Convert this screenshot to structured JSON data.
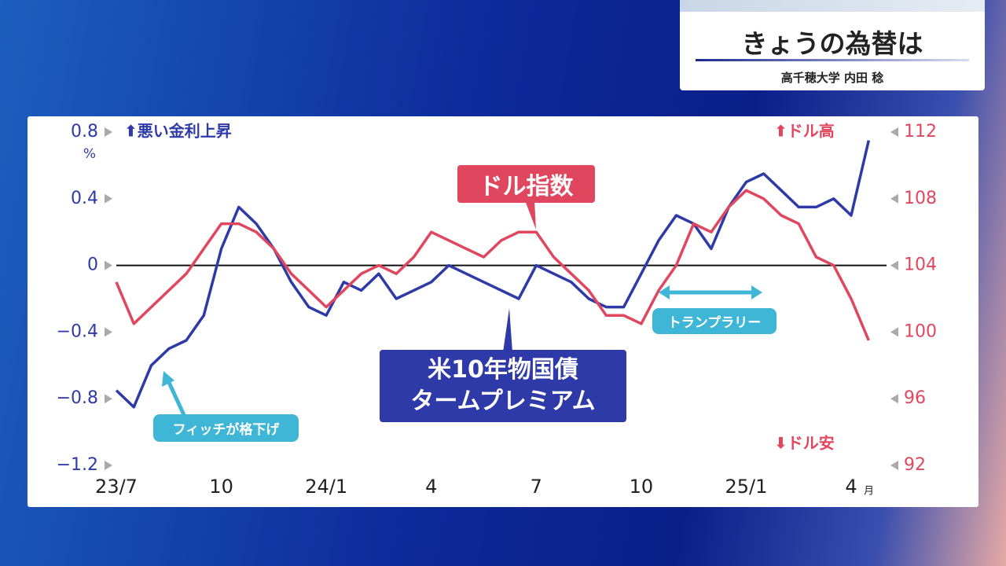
{
  "header": {
    "title": "きょうの為替は",
    "speaker": "高千穂大学 内田 稔"
  },
  "chart_data": {
    "type": "line",
    "categories": [
      "23/7",
      null,
      null,
      null,
      null,
      null,
      "10",
      null,
      null,
      null,
      null,
      null,
      "24/1",
      null,
      null,
      null,
      null,
      null,
      "4",
      null,
      null,
      null,
      null,
      null,
      "7",
      null,
      null,
      null,
      null,
      null,
      "10",
      null,
      null,
      null,
      null,
      null,
      "25/1",
      null,
      null,
      null,
      null,
      null,
      "4",
      null
    ],
    "xunit": "月",
    "yunit": "%",
    "ylim": [
      -1.2,
      0.8
    ],
    "yticks": [
      {
        "value": -1.2,
        "label": "−1.2"
      },
      {
        "value": -0.8,
        "label": "−0.8"
      },
      {
        "value": -0.4,
        "label": "−0.4"
      },
      0,
      0.4,
      0.8
    ],
    "y2lim": [
      92,
      112
    ],
    "y2ticks": [
      92,
      96,
      100,
      104,
      108,
      112
    ],
    "series": [
      {
        "name": "米10年物国債\nタームプレミアム",
        "color": "#2e3aa8",
        "values": [
          -0.75,
          -0.85,
          -0.6,
          -0.5,
          -0.45,
          -0.3,
          0.1,
          0.35,
          0.25,
          0.1,
          -0.1,
          -0.25,
          -0.3,
          -0.1,
          -0.15,
          -0.05,
          -0.2,
          -0.15,
          -0.1,
          0.0,
          -0.05,
          -0.1,
          -0.15,
          -0.2,
          0.0,
          -0.05,
          -0.1,
          -0.2,
          -0.25,
          -0.25,
          -0.05,
          0.15,
          0.3,
          0.25,
          0.1,
          0.35,
          0.5,
          0.55,
          0.45,
          0.35,
          0.35,
          0.4,
          0.3,
          0.75
        ]
      },
      {
        "name": "ドル指数",
        "color": "#e0475f",
        "axis": "y2",
        "values": [
          103,
          100.5,
          101.5,
          102.5,
          103.5,
          105,
          106.5,
          106.5,
          106,
          105,
          103.5,
          102.5,
          101.5,
          102.5,
          103.5,
          104,
          103.5,
          104.5,
          106,
          105.5,
          105,
          104.5,
          105.5,
          106,
          106,
          104.5,
          103.5,
          102.5,
          101,
          101,
          100.5,
          102.5,
          104,
          106.5,
          106,
          107.5,
          108.5,
          108,
          107,
          106.5,
          104.5,
          104,
          102,
          99.5
        ]
      }
    ],
    "annotations": [
      "⬆悪い金利上昇",
      "⬆ドル高",
      "⬇ドル安",
      "フィッチが格下げ",
      "トランプラリー"
    ]
  }
}
